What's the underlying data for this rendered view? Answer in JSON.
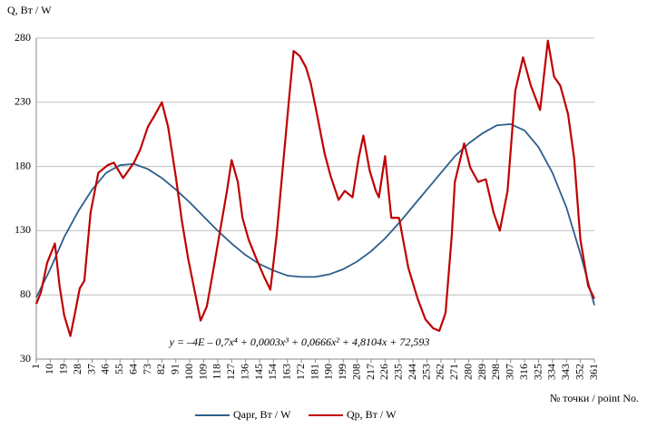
{
  "chart_data": {
    "type": "line",
    "y_label": "Q, Вт / W",
    "x_label": "№ точки / point No.",
    "annotation": "y = –4E – 0,7x⁴ + 0,0003x³ + 0,0666x² + 4,8104x + 72,593",
    "xlim": [
      1,
      361
    ],
    "xticks": [
      1,
      10,
      19,
      28,
      37,
      46,
      55,
      64,
      73,
      82,
      91,
      100,
      109,
      118,
      127,
      136,
      145,
      154,
      163,
      172,
      181,
      190,
      199,
      208,
      217,
      226,
      235,
      244,
      253,
      262,
      271,
      280,
      289,
      298,
      307,
      316,
      325,
      334,
      343,
      352,
      361
    ],
    "ylim": [
      30,
      280
    ],
    "yticks": [
      30,
      80,
      130,
      180,
      230,
      280
    ],
    "grid": true,
    "legend": "bottom",
    "series": [
      {
        "name": "Qapr, Вт / W",
        "color": "#2f5d8c",
        "x": [
          1,
          10,
          19,
          28,
          37,
          46,
          55,
          64,
          73,
          82,
          91,
          100,
          109,
          118,
          127,
          136,
          145,
          154,
          163,
          172,
          181,
          190,
          199,
          208,
          217,
          226,
          235,
          244,
          253,
          262,
          271,
          280,
          289,
          298,
          307,
          316,
          325,
          334,
          343,
          352,
          361
        ],
        "values": [
          78,
          100,
          125,
          145,
          162,
          175,
          181,
          182,
          178,
          171,
          162,
          152,
          141,
          130,
          120,
          111,
          104,
          99,
          95,
          94,
          94,
          96,
          100,
          106,
          114,
          124,
          136,
          149,
          162,
          175,
          188,
          198,
          206,
          212,
          213,
          208,
          195,
          175,
          148,
          112,
          72
        ]
      },
      {
        "name": "Qp, Вт / W",
        "color": "#c00000",
        "x": [
          1,
          4,
          8,
          13,
          16,
          19,
          23,
          26,
          29,
          32,
          36,
          41,
          47,
          51,
          57,
          64,
          68,
          73,
          77,
          82,
          86,
          91,
          95,
          99,
          103,
          107,
          111,
          115,
          120,
          124,
          127,
          131,
          134,
          138,
          143,
          148,
          152,
          156,
          160,
          164,
          167,
          171,
          175,
          178,
          182,
          187,
          191,
          196,
          200,
          205,
          209,
          212,
          216,
          220,
          222,
          226,
          230,
          235,
          241,
          247,
          252,
          257,
          261,
          265,
          269,
          271,
          277,
          281,
          286,
          291,
          296,
          300,
          305,
          310,
          315,
          320,
          326,
          331,
          335,
          339,
          344,
          348,
          352,
          357,
          361
        ],
        "values": [
          73,
          82,
          105,
          120,
          87,
          64,
          48,
          66,
          85,
          91,
          144,
          175,
          181,
          183,
          171,
          183,
          193,
          211,
          219,
          230,
          211,
          172,
          137,
          108,
          84,
          60,
          71,
          98,
          133,
          161,
          185,
          168,
          140,
          123,
          108,
          94,
          84,
          126,
          179,
          232,
          270,
          266,
          257,
          245,
          221,
          190,
          172,
          154,
          161,
          156,
          187,
          204,
          177,
          161,
          156,
          188,
          140,
          140,
          101,
          77,
          61,
          54,
          52,
          66,
          126,
          168,
          198,
          179,
          168,
          170,
          144,
          130,
          161,
          239,
          265,
          243,
          224,
          278,
          250,
          243,
          221,
          186,
          123,
          87,
          77
        ]
      }
    ]
  }
}
